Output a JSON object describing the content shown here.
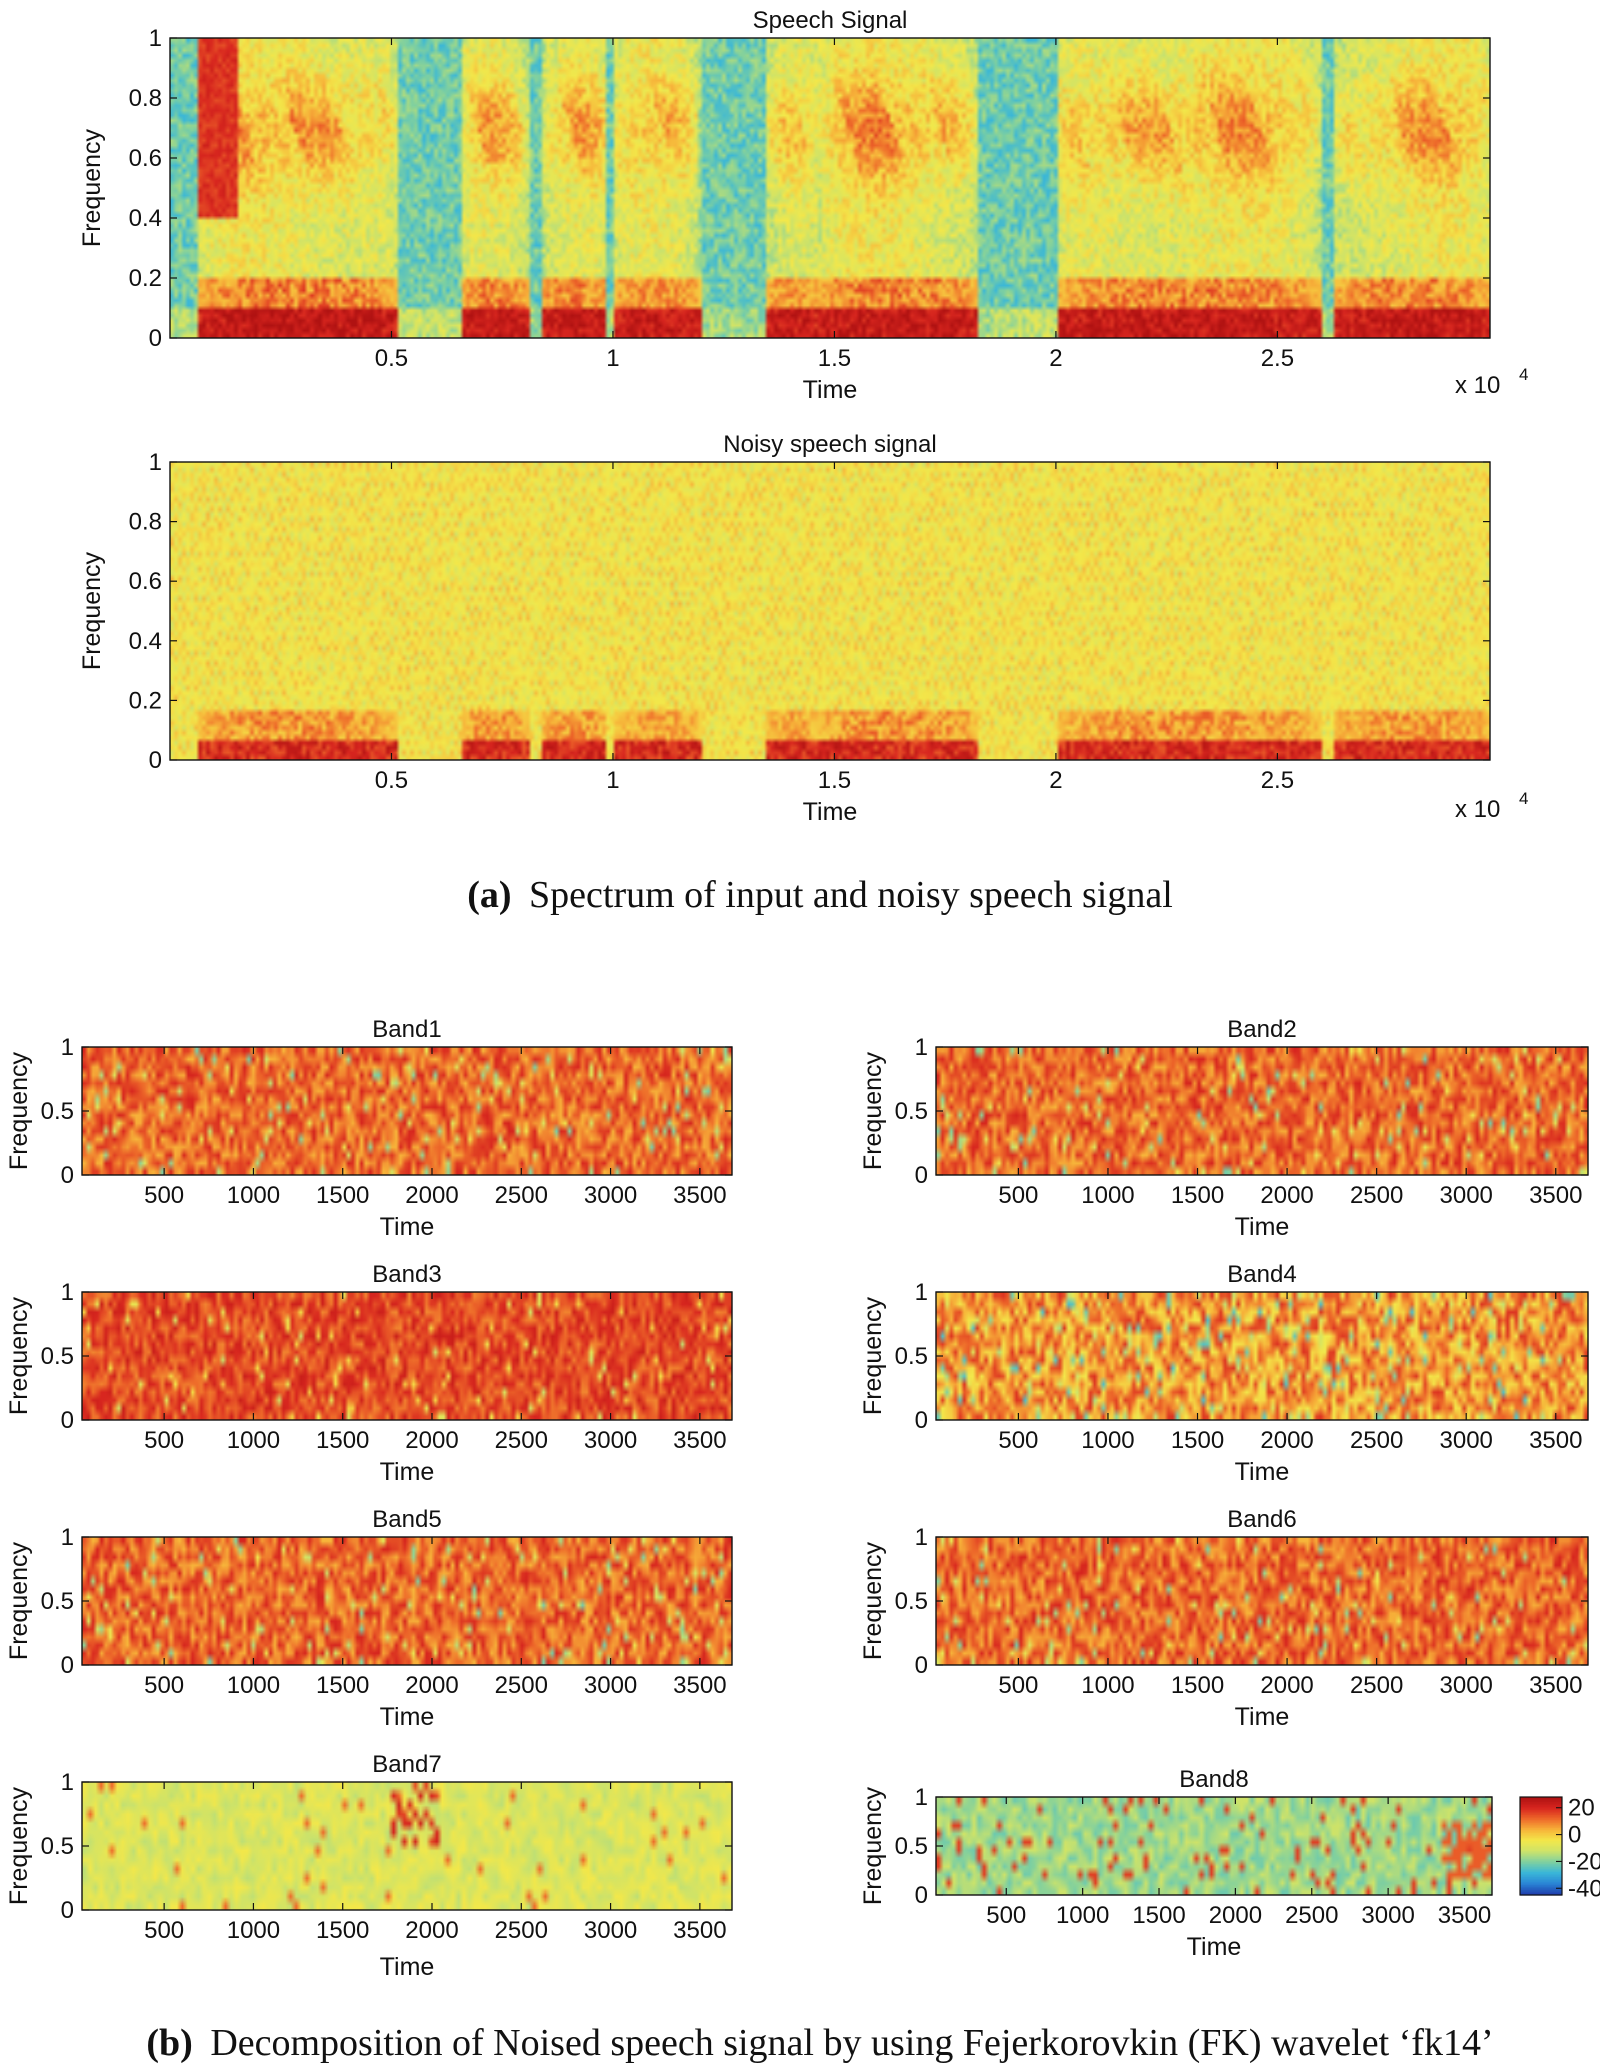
{
  "colors": {
    "colormap": [
      "#1f3fae",
      "#2a86d6",
      "#3ab7d8",
      "#7fd0a0",
      "#cde36a",
      "#f3e84a",
      "#f7b43a",
      "#ee6a2a",
      "#d8261f",
      "#b01212"
    ],
    "axis": "#111111",
    "background": "#ffffff"
  },
  "captions": {
    "a_label": "(a)",
    "a_text": "Spectrum of input and noisy speech signal",
    "b_label": "(b)",
    "b_text": "Decomposition of Noised speech signal by using Fejerkorovkin (FK) wavelet ‘fk14’"
  },
  "chart_data": [
    {
      "id": "speech",
      "type": "heatmap",
      "title": "Speech Signal",
      "xlabel": "Time",
      "ylabel": "Frequency",
      "x_multiplier": "x 10",
      "x_multiplier_exp": "4",
      "xticks": [
        "0.5",
        "1",
        "1.5",
        "2",
        "2.5"
      ],
      "xtick_values": [
        0.5,
        1,
        1.5,
        2,
        2.5
      ],
      "xlim": [
        0,
        2.98
      ],
      "yticks": [
        "0",
        "0.2",
        "0.4",
        "0.6",
        "0.8",
        "1"
      ],
      "ytick_values": [
        0,
        0.2,
        0.4,
        0.6,
        0.8,
        1
      ],
      "ylim": [
        0,
        1
      ],
      "texture": "speech"
    },
    {
      "id": "noisy",
      "type": "heatmap",
      "title": "Noisy  speech signal",
      "xlabel": "Time",
      "ylabel": "Frequency",
      "x_multiplier": "x 10",
      "x_multiplier_exp": "4",
      "xticks": [
        "0.5",
        "1",
        "1.5",
        "2",
        "2.5"
      ],
      "xtick_values": [
        0.5,
        1,
        1.5,
        2,
        2.5
      ],
      "xlim": [
        0,
        2.98
      ],
      "yticks": [
        "0",
        "0.2",
        "0.4",
        "0.6",
        "0.8",
        "1"
      ],
      "ytick_values": [
        0,
        0.2,
        0.4,
        0.6,
        0.8,
        1
      ],
      "ylim": [
        0,
        1
      ],
      "texture": "noisy"
    },
    {
      "id": "band1",
      "type": "heatmap",
      "title": "Band1",
      "xlabel": "Time",
      "ylabel": "Frequency",
      "xticks": [
        "500",
        "1000",
        "1500",
        "2000",
        "2500",
        "3000",
        "3500"
      ],
      "xtick_values": [
        500,
        1000,
        1500,
        2000,
        2500,
        3000,
        3500
      ],
      "xlim": [
        40,
        3680
      ],
      "yticks": [
        "0",
        "0.5",
        "1"
      ],
      "ytick_values": [
        0,
        0.5,
        1
      ],
      "ylim": [
        0,
        1
      ],
      "texture": "hot"
    },
    {
      "id": "band2",
      "type": "heatmap",
      "title": "Band2",
      "xlabel": "Time",
      "ylabel": "Frequency",
      "xticks": [
        "500",
        "1000",
        "1500",
        "2000",
        "2500",
        "3000",
        "3500"
      ],
      "xtick_values": [
        500,
        1000,
        1500,
        2000,
        2500,
        3000,
        3500
      ],
      "xlim": [
        40,
        3680
      ],
      "yticks": [
        "0",
        "0.5",
        "1"
      ],
      "ytick_values": [
        0,
        0.5,
        1
      ],
      "ylim": [
        0,
        1
      ],
      "texture": "hot"
    },
    {
      "id": "band3",
      "type": "heatmap",
      "title": "Band3",
      "xlabel": "Time",
      "ylabel": "Frequency",
      "xticks": [
        "500",
        "1000",
        "1500",
        "2000",
        "2500",
        "3000",
        "3500"
      ],
      "xtick_values": [
        500,
        1000,
        1500,
        2000,
        2500,
        3000,
        3500
      ],
      "xlim": [
        40,
        3680
      ],
      "yticks": [
        "0",
        "0.5",
        "1"
      ],
      "ytick_values": [
        0,
        0.5,
        1
      ],
      "ylim": [
        0,
        1
      ],
      "texture": "hotter"
    },
    {
      "id": "band4",
      "type": "heatmap",
      "title": "Band4",
      "xlabel": "Time",
      "ylabel": "Frequency",
      "xticks": [
        "500",
        "1000",
        "1500",
        "2000",
        "2500",
        "3000",
        "3500"
      ],
      "xtick_values": [
        500,
        1000,
        1500,
        2000,
        2500,
        3000,
        3500
      ],
      "xlim": [
        40,
        3680
      ],
      "yticks": [
        "0",
        "0.5",
        "1"
      ],
      "ytick_values": [
        0,
        0.5,
        1
      ],
      "ylim": [
        0,
        1
      ],
      "texture": "warm"
    },
    {
      "id": "band5",
      "type": "heatmap",
      "title": "Band5",
      "xlabel": "Time",
      "ylabel": "Frequency",
      "xticks": [
        "500",
        "1000",
        "1500",
        "2000",
        "2500",
        "3000",
        "3500"
      ],
      "xtick_values": [
        500,
        1000,
        1500,
        2000,
        2500,
        3000,
        3500
      ],
      "xlim": [
        40,
        3680
      ],
      "yticks": [
        "0",
        "0.5",
        "1"
      ],
      "ytick_values": [
        0,
        0.5,
        1
      ],
      "ylim": [
        0,
        1
      ],
      "texture": "hot"
    },
    {
      "id": "band6",
      "type": "heatmap",
      "title": "Band6",
      "xlabel": "Time",
      "ylabel": "Frequency",
      "xticks": [
        "500",
        "1000",
        "1500",
        "2000",
        "2500",
        "3000",
        "3500"
      ],
      "xtick_values": [
        500,
        1000,
        1500,
        2000,
        2500,
        3000,
        3500
      ],
      "xlim": [
        40,
        3680
      ],
      "yticks": [
        "0",
        "0.5",
        "1"
      ],
      "ytick_values": [
        0,
        0.5,
        1
      ],
      "ylim": [
        0,
        1
      ],
      "texture": "hot"
    },
    {
      "id": "band7",
      "type": "heatmap",
      "title": "Band7",
      "xlabel": "Time",
      "ylabel": "Frequency",
      "xticks": [
        "500",
        "1000",
        "1500",
        "2000",
        "2500",
        "3000",
        "3500"
      ],
      "xtick_values": [
        500,
        1000,
        1500,
        2000,
        2500,
        3000,
        3500
      ],
      "xlim": [
        40,
        3680
      ],
      "yticks": [
        "0",
        "0.5",
        "1"
      ],
      "ytick_values": [
        0,
        0.5,
        1
      ],
      "ylim": [
        0,
        1
      ],
      "texture": "cool"
    },
    {
      "id": "band8",
      "type": "heatmap",
      "title": "Band8",
      "xlabel": "Time",
      "ylabel": "Frequency",
      "xticks": [
        "500",
        "1000",
        "1500",
        "2000",
        "2500",
        "3000",
        "3500"
      ],
      "xtick_values": [
        500,
        1000,
        1500,
        2000,
        2500,
        3000,
        3500
      ],
      "xlim": [
        40,
        3680
      ],
      "yticks": [
        "0",
        "0.5",
        "1"
      ],
      "ytick_values": [
        0,
        0.5,
        1
      ],
      "ylim": [
        0,
        1
      ],
      "texture": "cold"
    }
  ],
  "colorbar": {
    "ticks": [
      "20",
      "0",
      "-20",
      "-40"
    ],
    "tick_values": [
      20,
      0,
      -20,
      -40
    ],
    "range": [
      -45,
      28
    ]
  }
}
